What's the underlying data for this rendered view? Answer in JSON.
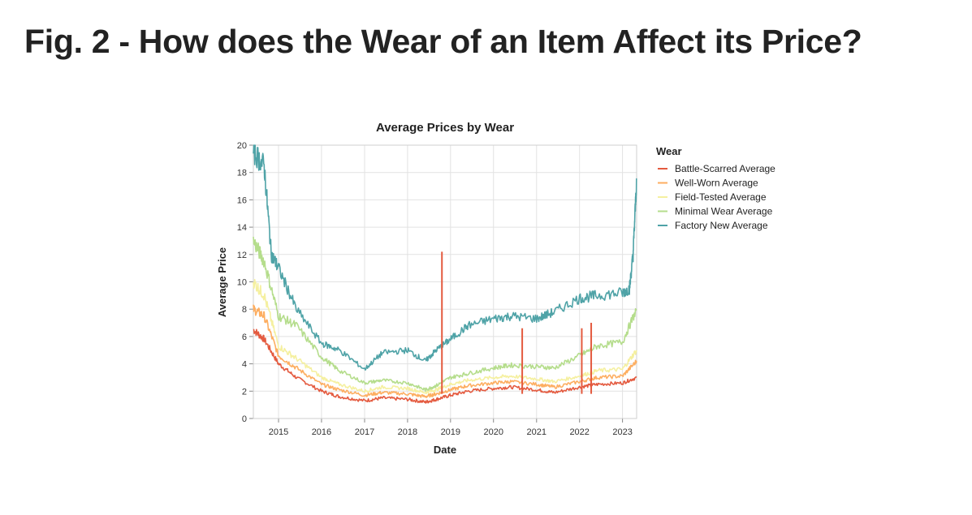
{
  "page": {
    "heading": "Fig. 2 - How does the Wear of an Item Affect its Price?"
  },
  "chart_data": {
    "type": "line",
    "title": "Average Prices by Wear",
    "xlabel": "Date",
    "ylabel": "Average Price",
    "x_range": [
      "2014-06-01",
      "2023-05-01"
    ],
    "ylim": [
      0,
      20
    ],
    "x_ticks": [
      "2015",
      "2016",
      "2017",
      "2018",
      "2019",
      "2020",
      "2021",
      "2022",
      "2023"
    ],
    "y_ticks": [
      0,
      2,
      4,
      6,
      8,
      10,
      12,
      14,
      16,
      18,
      20
    ],
    "grid": true,
    "legend": {
      "title": "Wear",
      "position": "right"
    },
    "series": [
      {
        "name": "Battle-Scarred Average",
        "color": "#e45a3f",
        "points": [
          [
            "2014-06-01",
            6.5
          ],
          [
            "2014-09-01",
            5.8
          ],
          [
            "2015-01-01",
            4.0
          ],
          [
            "2015-06-01",
            3.0
          ],
          [
            "2016-01-01",
            2.0
          ],
          [
            "2016-06-01",
            1.6
          ],
          [
            "2017-01-01",
            1.3
          ],
          [
            "2017-06-01",
            1.5
          ],
          [
            "2018-01-01",
            1.4
          ],
          [
            "2018-06-01",
            1.2
          ],
          [
            "2018-09-01",
            1.4
          ],
          [
            "2019-01-01",
            1.7
          ],
          [
            "2019-06-01",
            2.0
          ],
          [
            "2020-01-01",
            2.2
          ],
          [
            "2020-06-01",
            2.3
          ],
          [
            "2021-01-01",
            2.1
          ],
          [
            "2021-06-01",
            1.9
          ],
          [
            "2022-01-01",
            2.3
          ],
          [
            "2022-06-01",
            2.5
          ],
          [
            "2023-01-01",
            2.6
          ],
          [
            "2023-05-01",
            3.0
          ]
        ]
      },
      {
        "name": "Well-Worn Average",
        "color": "#fdae61",
        "points": [
          [
            "2014-06-01",
            8.0
          ],
          [
            "2014-09-01",
            7.5
          ],
          [
            "2015-01-01",
            4.6
          ],
          [
            "2015-06-01",
            3.7
          ],
          [
            "2016-01-01",
            2.5
          ],
          [
            "2016-06-01",
            2.1
          ],
          [
            "2017-01-01",
            1.7
          ],
          [
            "2017-06-01",
            1.9
          ],
          [
            "2018-01-01",
            1.8
          ],
          [
            "2018-06-01",
            1.6
          ],
          [
            "2018-09-01",
            1.8
          ],
          [
            "2019-01-01",
            2.1
          ],
          [
            "2019-06-01",
            2.4
          ],
          [
            "2020-01-01",
            2.6
          ],
          [
            "2020-06-01",
            2.7
          ],
          [
            "2021-01-01",
            2.5
          ],
          [
            "2021-06-01",
            2.3
          ],
          [
            "2022-01-01",
            2.7
          ],
          [
            "2022-06-01",
            3.0
          ],
          [
            "2023-01-01",
            3.1
          ],
          [
            "2023-05-01",
            4.2
          ]
        ]
      },
      {
        "name": "Field-Tested Average",
        "color": "#f5f0a0",
        "points": [
          [
            "2014-06-01",
            10.0
          ],
          [
            "2014-09-01",
            9.0
          ],
          [
            "2015-01-01",
            5.3
          ],
          [
            "2015-06-01",
            4.4
          ],
          [
            "2016-01-01",
            3.0
          ],
          [
            "2016-06-01",
            2.5
          ],
          [
            "2017-01-01",
            2.0
          ],
          [
            "2017-06-01",
            2.3
          ],
          [
            "2018-01-01",
            2.2
          ],
          [
            "2018-06-01",
            1.9
          ],
          [
            "2018-09-01",
            2.1
          ],
          [
            "2019-01-01",
            2.5
          ],
          [
            "2019-06-01",
            2.8
          ],
          [
            "2020-01-01",
            3.0
          ],
          [
            "2020-06-01",
            3.1
          ],
          [
            "2021-01-01",
            2.9
          ],
          [
            "2021-06-01",
            2.7
          ],
          [
            "2022-01-01",
            3.1
          ],
          [
            "2022-06-01",
            3.5
          ],
          [
            "2023-01-01",
            3.6
          ],
          [
            "2023-05-01",
            5.0
          ]
        ]
      },
      {
        "name": "Minimal Wear Average",
        "color": "#b5dd8c",
        "points": [
          [
            "2014-06-01",
            13.0
          ],
          [
            "2014-09-01",
            11.5
          ],
          [
            "2015-01-01",
            7.5
          ],
          [
            "2015-06-01",
            6.8
          ],
          [
            "2016-01-01",
            4.5
          ],
          [
            "2016-06-01",
            3.5
          ],
          [
            "2017-01-01",
            2.6
          ],
          [
            "2017-06-01",
            2.8
          ],
          [
            "2018-01-01",
            2.6
          ],
          [
            "2018-06-01",
            2.1
          ],
          [
            "2018-09-01",
            2.4
          ],
          [
            "2019-01-01",
            3.0
          ],
          [
            "2019-06-01",
            3.3
          ],
          [
            "2020-01-01",
            3.7
          ],
          [
            "2020-06-01",
            3.9
          ],
          [
            "2021-01-01",
            3.8
          ],
          [
            "2021-06-01",
            3.7
          ],
          [
            "2022-01-01",
            4.6
          ],
          [
            "2022-06-01",
            5.3
          ],
          [
            "2023-01-01",
            5.6
          ],
          [
            "2023-05-01",
            8.0
          ]
        ]
      },
      {
        "name": "Factory New Average",
        "color": "#4fa3a7",
        "points": [
          [
            "2014-06-01",
            19.5
          ],
          [
            "2014-09-01",
            18.5
          ],
          [
            "2014-11-01",
            12.0
          ],
          [
            "2015-01-01",
            11.0
          ],
          [
            "2015-06-01",
            8.0
          ],
          [
            "2016-01-01",
            5.5
          ],
          [
            "2016-06-01",
            5.0
          ],
          [
            "2017-01-01",
            3.6
          ],
          [
            "2017-06-01",
            4.8
          ],
          [
            "2018-01-01",
            5.0
          ],
          [
            "2018-06-01",
            4.2
          ],
          [
            "2018-09-01",
            5.0
          ],
          [
            "2019-01-01",
            5.8
          ],
          [
            "2019-06-01",
            6.8
          ],
          [
            "2020-01-01",
            7.3
          ],
          [
            "2020-06-01",
            7.5
          ],
          [
            "2021-01-01",
            7.3
          ],
          [
            "2021-06-01",
            7.8
          ],
          [
            "2022-01-01",
            8.8
          ],
          [
            "2022-06-01",
            9.0
          ],
          [
            "2023-01-01",
            9.2
          ],
          [
            "2023-03-01",
            9.5
          ],
          [
            "2023-04-01",
            12.0
          ],
          [
            "2023-05-01",
            17.5
          ]
        ]
      }
    ],
    "spikes": [
      {
        "series": "Battle-Scarred Average",
        "date": "2018-10-20",
        "value": 12.2
      },
      {
        "series": "Battle-Scarred Average",
        "date": "2020-09-01",
        "value": 6.6
      },
      {
        "series": "Battle-Scarred Average",
        "date": "2022-01-20",
        "value": 6.6
      },
      {
        "series": "Battle-Scarred Average",
        "date": "2022-04-10",
        "value": 7.0
      }
    ]
  }
}
